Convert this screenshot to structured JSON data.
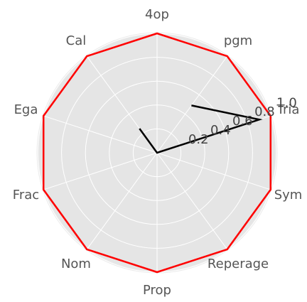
{
  "chart_data": {
    "type": "radar",
    "categories": [
      "4op",
      "pgm",
      "Tria",
      "Sym",
      "Reperage",
      "Prop",
      "Nom",
      "Frac",
      "Ega",
      "Cal"
    ],
    "series": [
      {
        "color": "#ff0000",
        "values": [
          1,
          1,
          1,
          1,
          1,
          1,
          1,
          1,
          1,
          1
        ]
      },
      {
        "color": "#000000",
        "values": [
          null,
          0.49,
          0.9,
          0,
          0,
          0,
          0,
          0,
          0,
          0.25
        ]
      }
    ],
    "ylim": [
      0,
      1
    ],
    "yticks": [
      {
        "value": 0.2,
        "label": "0.2"
      },
      {
        "value": 0.4,
        "label": "0.4"
      },
      {
        "value": 0.6,
        "label": "0.6"
      },
      {
        "value": 0.8,
        "label": "0.8"
      },
      {
        "value": 1.0,
        "label": "1.0"
      }
    ],
    "grid": true
  }
}
